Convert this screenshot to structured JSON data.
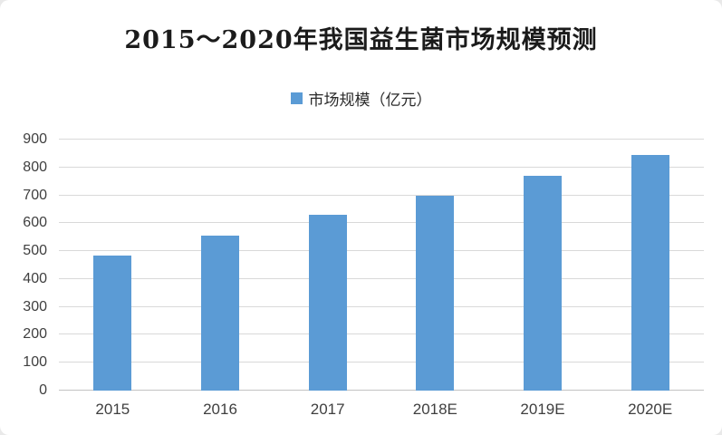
{
  "card": {
    "background": "#ffffff"
  },
  "chart_data": {
    "type": "bar",
    "title": "2015～2020年我国益生菌市场规模预测",
    "series_name": "市场规模（亿元）",
    "categories": [
      "2015",
      "2016",
      "2017",
      "2018E",
      "2019E",
      "2020E"
    ],
    "values": [
      485,
      555,
      630,
      700,
      770,
      845
    ],
    "xlabel": "",
    "ylabel": "",
    "ylim": [
      0,
      900
    ],
    "yticks": [
      0,
      100,
      200,
      300,
      400,
      500,
      600,
      700,
      800,
      900
    ],
    "grid": true,
    "legend_position": "top-center",
    "bar_color": "#5b9bd5",
    "gridline_color": "#d9d9d9",
    "axis_line_color": "#c3c3c3",
    "tick_label_color": "#3f3f3f",
    "title_color": "#1b1b1b"
  }
}
